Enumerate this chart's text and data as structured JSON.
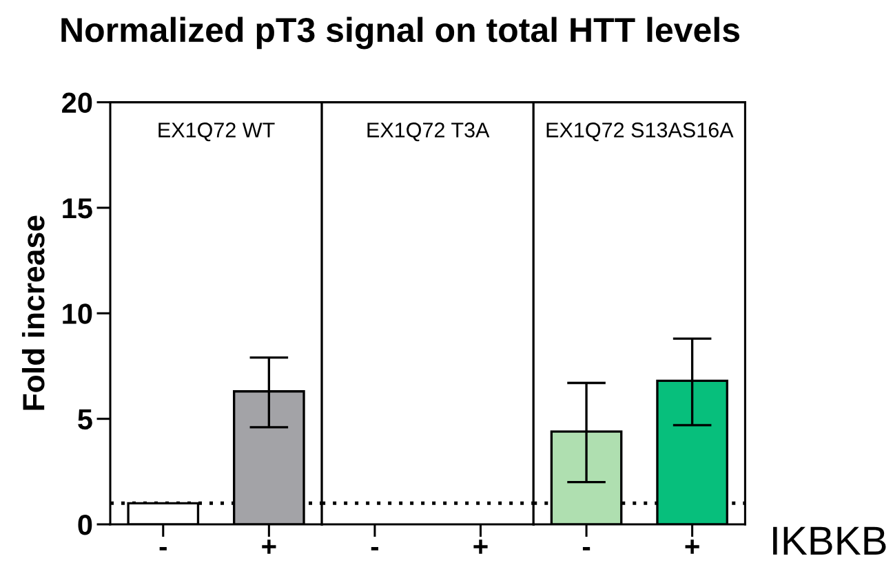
{
  "chart_data": [
    {
      "type": "bar",
      "title": "Normalized pT3 signal on total HTT levels",
      "subtitle": "EX1Q72 WT",
      "ylabel": "Fold increase",
      "categories": [
        "-",
        "+"
      ],
      "values": [
        1.0,
        6.3
      ],
      "colors": [
        "#ffffff",
        "#a3a3a7"
      ],
      "errors": [
        null,
        [
          4.6,
          7.9
        ]
      ],
      "ylim": [
        0,
        20
      ],
      "yticks": [
        0,
        5,
        10,
        15,
        20
      ],
      "ref_lines": [
        {
          "axis": "y",
          "value": 1,
          "line_style": "dotted",
          "color": "#000000"
        }
      ]
    },
    {
      "type": "bar",
      "subtitle": "EX1Q72 T3A",
      "categories": [
        "-",
        "+"
      ],
      "values": [
        null,
        null
      ],
      "ylim": [
        0,
        20
      ],
      "ref_lines": [
        {
          "axis": "y",
          "value": 1,
          "line_style": "dotted",
          "color": "#000000"
        }
      ],
      "tick_labels": "x"
    },
    {
      "type": "bar",
      "subtitle": "EX1Q72 S13AS16A",
      "xlabel": "IKBKB",
      "categories": [
        "-",
        "+"
      ],
      "values": [
        4.4,
        6.8
      ],
      "colors": [
        "#afdfb0",
        "#07bf7c"
      ],
      "errors": [
        [
          2.0,
          6.7
        ],
        [
          4.7,
          8.8
        ]
      ],
      "ylim": [
        0,
        20
      ],
      "ref_lines": [
        {
          "axis": "y",
          "value": 1,
          "line_style": "dotted",
          "color": "#000000"
        }
      ],
      "tick_labels": "x"
    }
  ]
}
